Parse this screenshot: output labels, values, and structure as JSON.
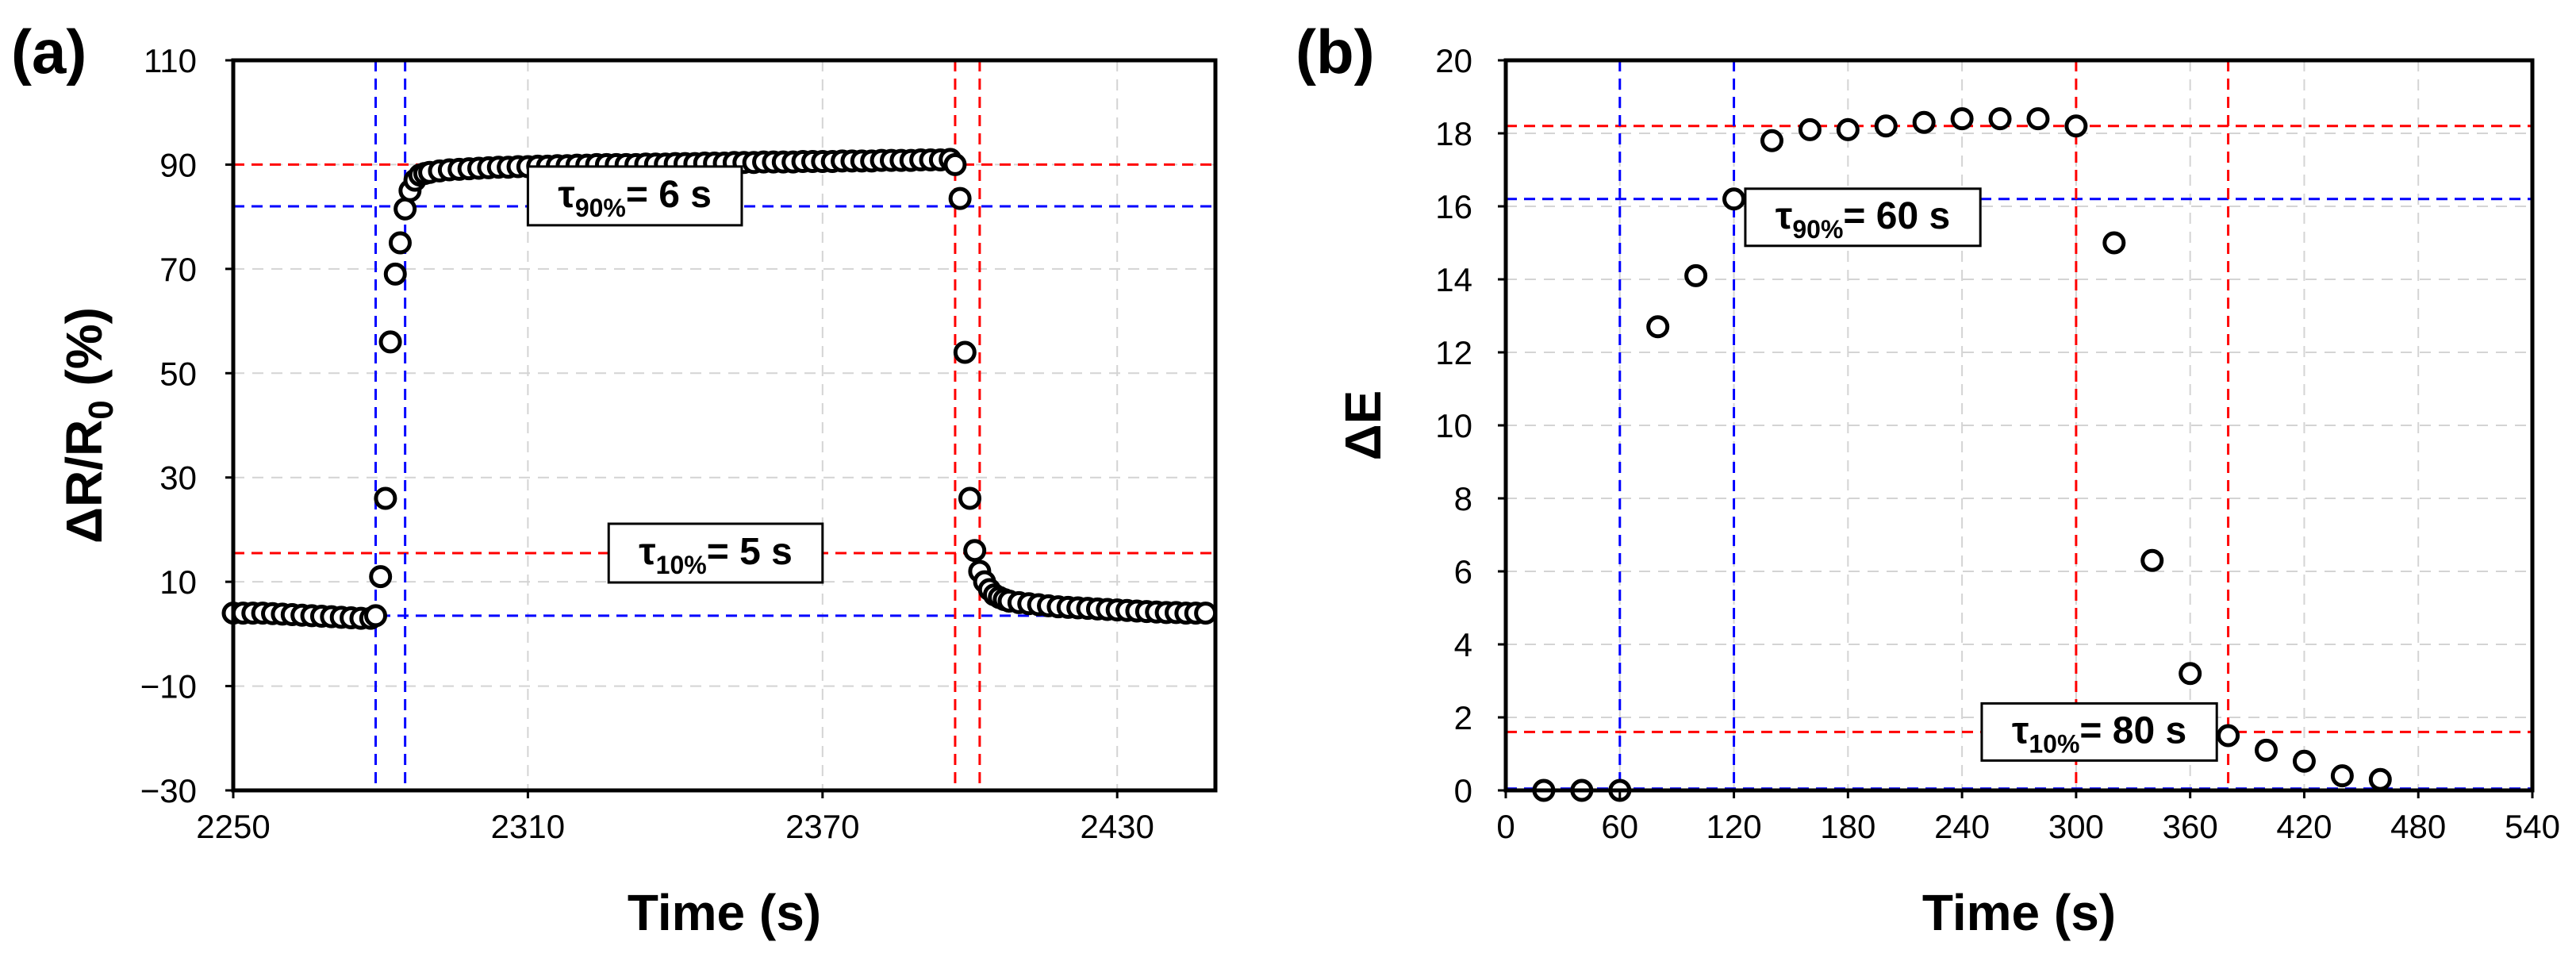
{
  "chart_data": [
    {
      "panel_label": "(a)",
      "type": "scatter",
      "xlabel": "Time (s)",
      "ylabel": "ΔR/R",
      "ylabel_sub": "0",
      "ylabel_suffix": " (%)",
      "xlim": [
        2250,
        2450
      ],
      "ylim": [
        -30,
        110
      ],
      "xticks": [
        2250,
        2310,
        2370,
        2430
      ],
      "yticks": [
        -30,
        -10,
        10,
        30,
        50,
        70,
        90,
        110
      ],
      "grid": true,
      "reference_lines": {
        "horizontal": [
          {
            "y": 90,
            "color": "#ff0000"
          },
          {
            "y": 82,
            "color": "#0000ff"
          },
          {
            "y": 15.5,
            "color": "#ff0000"
          },
          {
            "y": 3.5,
            "color": "#0000ff"
          }
        ],
        "vertical": [
          {
            "x": 2279,
            "color": "#0000ff"
          },
          {
            "x": 2285,
            "color": "#0000ff"
          },
          {
            "x": 2397,
            "color": "#ff0000"
          },
          {
            "x": 2402,
            "color": "#ff0000"
          }
        ]
      },
      "annotations": [
        {
          "symbol": "τ",
          "subscript": "90%",
          "text": "= 6 s",
          "at": [
            2310,
            84
          ],
          "side": "left"
        },
        {
          "symbol": "τ",
          "subscript": "10%",
          "text": "= 5 s",
          "at": [
            2370,
            15.5
          ],
          "side": "right"
        }
      ],
      "series": [
        {
          "name": "ΔR/R0",
          "points": [
            [
              2250,
              4
            ],
            [
              2252,
              4
            ],
            [
              2254,
              4
            ],
            [
              2256,
              4
            ],
            [
              2258,
              3.9
            ],
            [
              2260,
              3.8
            ],
            [
              2262,
              3.7
            ],
            [
              2264,
              3.6
            ],
            [
              2266,
              3.5
            ],
            [
              2268,
              3.4
            ],
            [
              2270,
              3.3
            ],
            [
              2272,
              3.2
            ],
            [
              2274,
              3.1
            ],
            [
              2276,
              3
            ],
            [
              2278,
              3
            ],
            [
              2279,
              3.5
            ],
            [
              2280,
              11
            ],
            [
              2281,
              26
            ],
            [
              2282,
              56
            ],
            [
              2283,
              69
            ],
            [
              2284,
              75
            ],
            [
              2285,
              81.5
            ],
            [
              2286,
              85
            ],
            [
              2287,
              87
            ],
            [
              2288,
              88
            ],
            [
              2289,
              88.3
            ],
            [
              2290,
              88.5
            ],
            [
              2292,
              88.8
            ],
            [
              2294,
              89
            ],
            [
              2296,
              89.1
            ],
            [
              2298,
              89.2
            ],
            [
              2300,
              89.3
            ],
            [
              2302,
              89.4
            ],
            [
              2304,
              89.5
            ],
            [
              2306,
              89.5
            ],
            [
              2308,
              89.6
            ],
            [
              2310,
              89.6
            ],
            [
              2312,
              89.7
            ],
            [
              2314,
              89.7
            ],
            [
              2316,
              89.8
            ],
            [
              2318,
              89.8
            ],
            [
              2320,
              89.9
            ],
            [
              2322,
              89.9
            ],
            [
              2324,
              90
            ],
            [
              2326,
              90
            ],
            [
              2328,
              90
            ],
            [
              2330,
              90
            ],
            [
              2332,
              90
            ],
            [
              2334,
              90.1
            ],
            [
              2336,
              90.1
            ],
            [
              2338,
              90.1
            ],
            [
              2340,
              90.2
            ],
            [
              2342,
              90.2
            ],
            [
              2344,
              90.2
            ],
            [
              2346,
              90.3
            ],
            [
              2348,
              90.3
            ],
            [
              2350,
              90.3
            ],
            [
              2352,
              90.4
            ],
            [
              2354,
              90.4
            ],
            [
              2356,
              90.4
            ],
            [
              2358,
              90.5
            ],
            [
              2360,
              90.5
            ],
            [
              2362,
              90.5
            ],
            [
              2364,
              90.5
            ],
            [
              2366,
              90.6
            ],
            [
              2368,
              90.6
            ],
            [
              2370,
              90.6
            ],
            [
              2372,
              90.6
            ],
            [
              2374,
              90.7
            ],
            [
              2376,
              90.7
            ],
            [
              2378,
              90.7
            ],
            [
              2380,
              90.7
            ],
            [
              2382,
              90.8
            ],
            [
              2384,
              90.8
            ],
            [
              2386,
              90.8
            ],
            [
              2388,
              90.8
            ],
            [
              2390,
              90.9
            ],
            [
              2392,
              90.9
            ],
            [
              2394,
              90.9
            ],
            [
              2396,
              91
            ],
            [
              2397,
              90
            ],
            [
              2398,
              83.5
            ],
            [
              2399,
              54
            ],
            [
              2400,
              26
            ],
            [
              2401,
              16
            ],
            [
              2402,
              12
            ],
            [
              2403,
              10
            ],
            [
              2404,
              8.5
            ],
            [
              2405,
              7.5
            ],
            [
              2406,
              7
            ],
            [
              2407,
              6.6
            ],
            [
              2408,
              6.3
            ],
            [
              2410,
              6
            ],
            [
              2412,
              5.8
            ],
            [
              2414,
              5.6
            ],
            [
              2416,
              5.4
            ],
            [
              2418,
              5.2
            ],
            [
              2420,
              5.1
            ],
            [
              2422,
              5
            ],
            [
              2424,
              4.9
            ],
            [
              2426,
              4.8
            ],
            [
              2428,
              4.7
            ],
            [
              2430,
              4.6
            ],
            [
              2432,
              4.5
            ],
            [
              2434,
              4.4
            ],
            [
              2436,
              4.3
            ],
            [
              2438,
              4.2
            ],
            [
              2440,
              4.1
            ],
            [
              2442,
              4.1
            ],
            [
              2444,
              4
            ],
            [
              2446,
              4
            ],
            [
              2448,
              4
            ]
          ]
        }
      ]
    },
    {
      "panel_label": "(b)",
      "type": "scatter",
      "xlabel": "Time (s)",
      "ylabel": "ΔE",
      "xlim": [
        0,
        540
      ],
      "ylim": [
        0,
        20
      ],
      "xticks": [
        0,
        60,
        120,
        180,
        240,
        300,
        360,
        420,
        480,
        540
      ],
      "yticks": [
        0,
        2,
        4,
        6,
        8,
        10,
        12,
        14,
        16,
        18,
        20
      ],
      "grid": true,
      "reference_lines": {
        "horizontal": [
          {
            "y": 18.2,
            "color": "#ff0000"
          },
          {
            "y": 16.2,
            "color": "#0000ff"
          },
          {
            "y": 1.6,
            "color": "#ff0000"
          },
          {
            "y": 0.05,
            "color": "#0000ff"
          }
        ],
        "vertical": [
          {
            "x": 60,
            "color": "#0000ff"
          },
          {
            "x": 120,
            "color": "#0000ff"
          },
          {
            "x": 300,
            "color": "#ff0000"
          },
          {
            "x": 380,
            "color": "#ff0000"
          }
        ]
      },
      "annotations": [
        {
          "symbol": "τ",
          "subscript": "90%",
          "text": "= 60 s",
          "at": [
            126,
            15.7
          ],
          "side": "left"
        },
        {
          "symbol": "τ",
          "subscript": "10%",
          "text": "= 80 s",
          "at": [
            374,
            1.6
          ],
          "side": "right"
        }
      ],
      "series": [
        {
          "name": "ΔE",
          "points": [
            [
              20,
              0
            ],
            [
              40,
              0
            ],
            [
              60,
              0
            ],
            [
              80,
              12.7
            ],
            [
              100,
              14.1
            ],
            [
              120,
              16.2
            ],
            [
              140,
              17.8
            ],
            [
              160,
              18.1
            ],
            [
              180,
              18.1
            ],
            [
              200,
              18.2
            ],
            [
              220,
              18.3
            ],
            [
              240,
              18.4
            ],
            [
              260,
              18.4
            ],
            [
              280,
              18.4
            ],
            [
              300,
              18.2
            ],
            [
              320,
              15
            ],
            [
              340,
              6.3
            ],
            [
              360,
              3.2
            ],
            [
              380,
              1.5
            ],
            [
              400,
              1.1
            ],
            [
              420,
              0.8
            ],
            [
              440,
              0.4
            ],
            [
              460,
              0.3
            ]
          ]
        }
      ]
    }
  ]
}
